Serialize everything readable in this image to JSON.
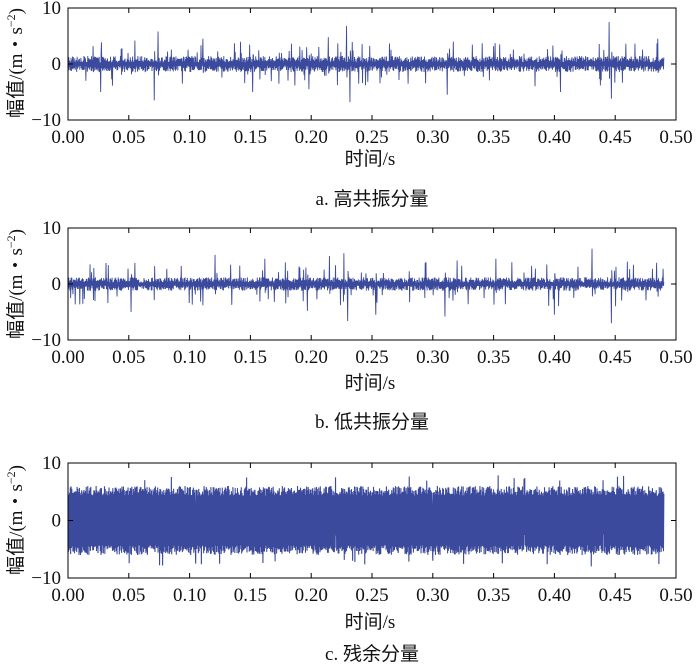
{
  "chart_data": [
    {
      "type": "line",
      "caption": "a. 高共振分量",
      "xlabel": "时间/s",
      "ylabel": "幅值/(m・s",
      "ylabel_sup": "−2",
      "ylabel_close": ")",
      "xlim": [
        0,
        0.5
      ],
      "ylim": [
        -10,
        10
      ],
      "x_ticks": [
        "0.00",
        "0.05",
        "0.10",
        "0.15",
        "0.20",
        "0.25",
        "0.30",
        "0.35",
        "0.40",
        "0.45",
        "0.50"
      ],
      "y_ticks": [
        "10",
        "0",
        "−10"
      ],
      "grid": false,
      "series_color": "#3b4a9c",
      "signal": {
        "t_start": 0.0,
        "t_end": 0.49,
        "baseline_amplitude": 1.2,
        "peak_amplitude": 7.5,
        "peaks": [
          {
            "t": 0.027,
            "v": -5.0
          },
          {
            "t": 0.055,
            "v": 4.2
          },
          {
            "t": 0.071,
            "v": -6.5
          },
          {
            "t": 0.074,
            "v": 5.8
          },
          {
            "t": 0.111,
            "v": 4.5
          },
          {
            "t": 0.152,
            "v": -5.0
          },
          {
            "t": 0.198,
            "v": -4.5
          },
          {
            "t": 0.214,
            "v": 4.8
          },
          {
            "t": 0.229,
            "v": 6.8
          },
          {
            "t": 0.232,
            "v": -6.8
          },
          {
            "t": 0.312,
            "v": -5.5
          },
          {
            "t": 0.317,
            "v": 4.0
          },
          {
            "t": 0.355,
            "v": 3.5
          },
          {
            "t": 0.405,
            "v": -5.0
          },
          {
            "t": 0.445,
            "v": 7.5
          },
          {
            "t": 0.447,
            "v": -6.2
          },
          {
            "t": 0.485,
            "v": 4.5
          }
        ]
      }
    },
    {
      "type": "line",
      "caption": "b. 低共振分量",
      "xlabel": "时间/s",
      "ylabel": "幅值/(m・s",
      "ylabel_sup": "−2",
      "ylabel_close": ")",
      "xlim": [
        0,
        0.5
      ],
      "ylim": [
        -10,
        10
      ],
      "x_ticks": [
        "0.00",
        "0.05",
        "0.10",
        "0.15",
        "0.20",
        "0.25",
        "0.30",
        "0.35",
        "0.40",
        "0.45",
        "0.50"
      ],
      "y_ticks": [
        "10",
        "0",
        "−10"
      ],
      "grid": false,
      "series_color": "#3b4a9c",
      "signal": {
        "t_start": 0.0,
        "t_end": 0.49,
        "baseline_amplitude": 1.0,
        "peak_amplitude": 6.5,
        "peaks": [
          {
            "t": 0.018,
            "v": 3.5
          },
          {
            "t": 0.052,
            "v": -5.0
          },
          {
            "t": 0.121,
            "v": 5.2
          },
          {
            "t": 0.162,
            "v": 4.5
          },
          {
            "t": 0.197,
            "v": -4.8
          },
          {
            "t": 0.215,
            "v": 5.0
          },
          {
            "t": 0.227,
            "v": 5.5
          },
          {
            "t": 0.23,
            "v": -6.6
          },
          {
            "t": 0.253,
            "v": -5.5
          },
          {
            "t": 0.31,
            "v": -5.8
          },
          {
            "t": 0.32,
            "v": 4.2
          },
          {
            "t": 0.352,
            "v": 4.5
          },
          {
            "t": 0.4,
            "v": -5.5
          },
          {
            "t": 0.431,
            "v": 6.3
          },
          {
            "t": 0.447,
            "v": -7.0
          },
          {
            "t": 0.46,
            "v": 4.0
          },
          {
            "t": 0.484,
            "v": 3.8
          }
        ]
      }
    },
    {
      "type": "line",
      "caption": "c. 残余分量",
      "xlabel": "时间/s",
      "ylabel": "幅值/(m・s",
      "ylabel_sup": "−2",
      "ylabel_close": ")",
      "xlim": [
        0,
        0.5
      ],
      "ylim": [
        -10,
        10
      ],
      "x_ticks": [
        "0.00",
        "0.05",
        "0.10",
        "0.15",
        "0.20",
        "0.25",
        "0.30",
        "0.35",
        "0.40",
        "0.45",
        "0.50"
      ],
      "y_ticks": [
        "10",
        "0",
        "−10"
      ],
      "grid": false,
      "series_color": "#3b4a9c",
      "signal": {
        "t_start": 0.0,
        "t_end": 0.49,
        "baseline_amplitude": 6.0,
        "peak_amplitude": 8.0,
        "peaks": [
          {
            "t": 0.105,
            "v": -7.5
          },
          {
            "t": 0.22,
            "v": 7.5
          },
          {
            "t": 0.3,
            "v": -7.0
          },
          {
            "t": 0.375,
            "v": 7.2
          },
          {
            "t": 0.44,
            "v": 7.0
          }
        ]
      }
    }
  ]
}
